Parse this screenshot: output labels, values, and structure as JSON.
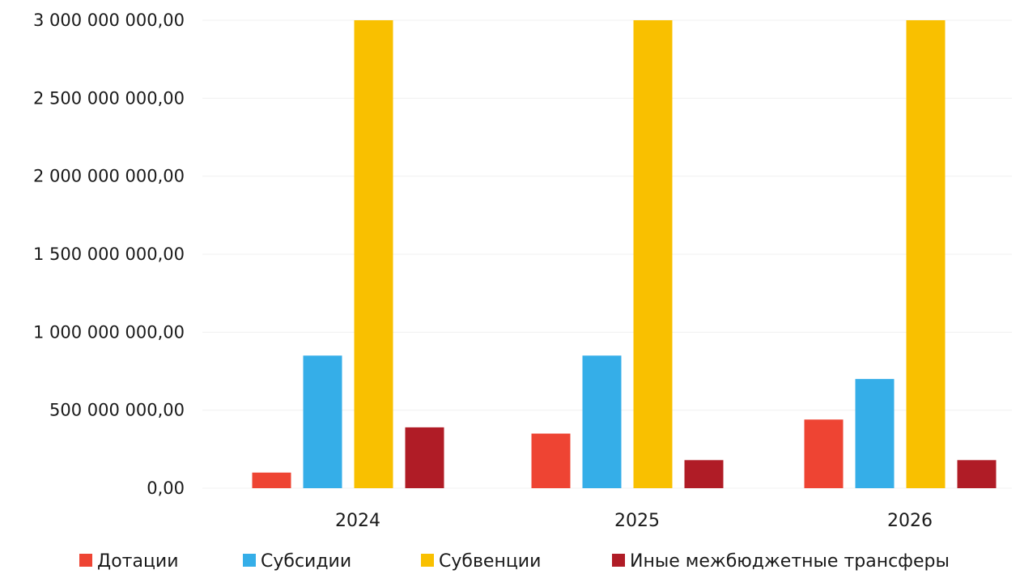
{
  "chart_data": {
    "type": "bar",
    "title": "",
    "xlabel": "",
    "ylabel": "",
    "categories": [
      "2024",
      "2025",
      "2026"
    ],
    "ylim": [
      0,
      3000000000
    ],
    "y_ticks": [
      0,
      500000000,
      1000000000,
      1500000000,
      2000000000,
      2500000000,
      3000000000
    ],
    "y_tick_labels": [
      "0,00",
      "500 000 000,00",
      "1 000 000 000,00",
      "1 500 000 000,00",
      "2 000 000 000,00",
      "2 500 000 000,00",
      "3 000 000 000,00"
    ],
    "grid": true,
    "legend_position": "bottom",
    "series": [
      {
        "name": "Дотации",
        "color": "#ee4433",
        "values": [
          100000000,
          350000000,
          440000000
        ]
      },
      {
        "name": "Субсидии",
        "color": "#35aee8",
        "values": [
          850000000,
          850000000,
          700000000
        ]
      },
      {
        "name": "Субвенции",
        "color": "#f9c000",
        "values": [
          3000000000,
          3000000000,
          3000000000
        ]
      },
      {
        "name": "Иные межбюджетные трансферы",
        "color": "#b01c26",
        "values": [
          390000000,
          180000000,
          180000000
        ]
      }
    ]
  }
}
